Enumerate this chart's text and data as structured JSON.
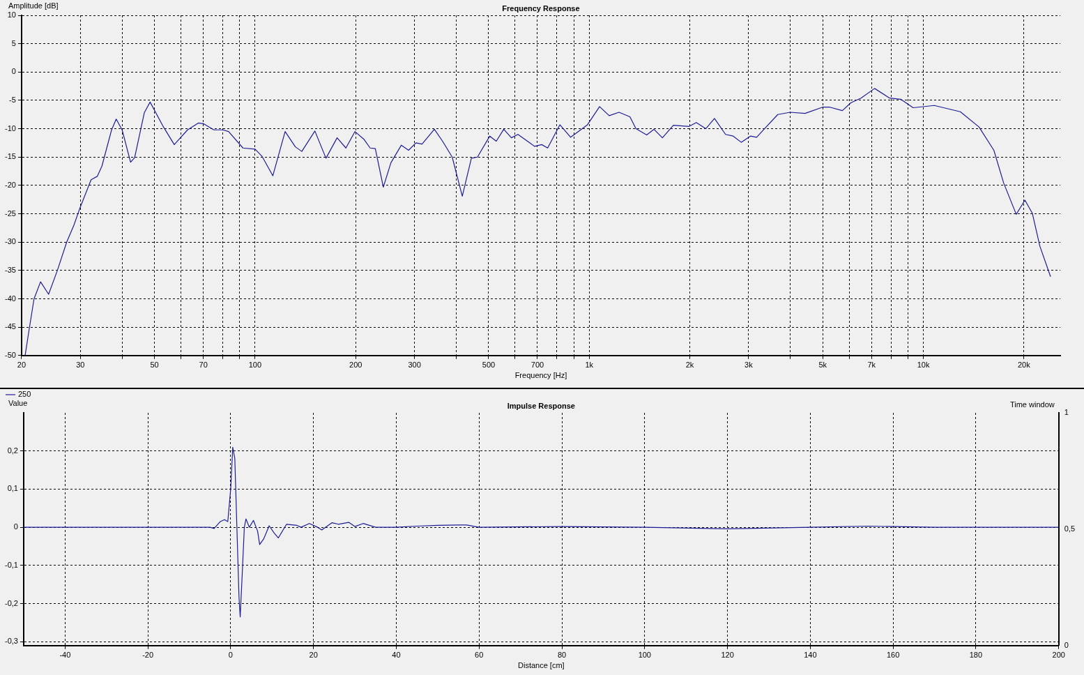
{
  "chart_data": [
    {
      "type": "line",
      "title": "Frequency Response",
      "xlabel": "Frequency [Hz]",
      "ylabel": "Amplitude [dB]",
      "log": "x",
      "grid": true,
      "line_style": "solid",
      "marker": "none",
      "xlim": [
        20,
        25700
      ],
      "ylim": [
        -50,
        10
      ],
      "xticks": [
        20,
        30,
        {
          "value": 40,
          "label": null
        },
        50,
        {
          "value": 60,
          "label": null
        },
        70,
        {
          "value": 80,
          "label": null
        },
        {
          "value": 90,
          "label": null
        },
        100,
        200,
        300,
        {
          "value": 400,
          "label": null
        },
        500,
        {
          "value": 600,
          "label": null
        },
        700,
        {
          "value": 800,
          "label": null
        },
        {
          "value": 900,
          "label": null
        },
        {
          "value": 1000,
          "label": "1k"
        },
        {
          "value": 2000,
          "label": "2k"
        },
        {
          "value": 3000,
          "label": "3k"
        },
        {
          "value": 4000,
          "label": null
        },
        {
          "value": 5000,
          "label": "5k"
        },
        {
          "value": 6000,
          "label": null
        },
        {
          "value": 7000,
          "label": "7k"
        },
        {
          "value": 8000,
          "label": null
        },
        {
          "value": 9000,
          "label": null
        },
        {
          "value": 10000,
          "label": "10k"
        },
        {
          "value": 20000,
          "label": "20k"
        }
      ],
      "yticks": [
        -50,
        -45,
        -40,
        -35,
        -30,
        -25,
        -20,
        -15,
        -10,
        -5,
        0,
        5,
        10
      ],
      "series": [
        {
          "color": "#1c1c96",
          "x": [
            20.5,
            21,
            21.8,
            22.8,
            24.1,
            25.6,
            27.3,
            28.7,
            29.9,
            32.3,
            33.7,
            34.8,
            37.2,
            38.4,
            40,
            42.4,
            43.6,
            46.6,
            48.5,
            53.2,
            57.3,
            62.8,
            67.6,
            70,
            75.3,
            80,
            83.3,
            92,
            100,
            105,
            113,
            123,
            132,
            138,
            151,
            163,
            176,
            187,
            199,
            212,
            221,
            229,
            242,
            255,
            274,
            288,
            303,
            316,
            344,
            364,
            389,
            417,
            444,
            463,
            504,
            527,
            555,
            585,
            612,
            686,
            721,
            751,
            817,
            880,
            988,
            1074,
            1148,
            1228,
            1324,
            1380,
            1486,
            1562,
            1656,
            1786,
            1990,
            2092,
            2233,
            2371,
            2559,
            2697,
            2853,
            3038,
            3170,
            3310,
            3667,
            3995,
            4426,
            4993,
            5254,
            5723,
            6074,
            6507,
            7149,
            7925,
            8557,
            9322,
            10782,
            12906,
            14677,
            16260,
            17400,
            18970,
            20140,
            21190,
            22320,
            24030
          ],
          "values": [
            -50,
            -46,
            -40,
            -37,
            -39.2,
            -35,
            -30,
            -27,
            -24,
            -19,
            -18.4,
            -16.6,
            -10.2,
            -8.3,
            -10.2,
            -15.9,
            -15.1,
            -7.2,
            -5.3,
            -9.7,
            -12.8,
            -10.2,
            -9,
            -9.1,
            -10.2,
            -10.2,
            -10.5,
            -13.4,
            -13.6,
            -14.9,
            -18.3,
            -10.5,
            -13.2,
            -14,
            -10.4,
            -15.2,
            -11.6,
            -13.4,
            -10.5,
            -11.9,
            -13.4,
            -13.5,
            -20.3,
            -16,
            -12.9,
            -13.8,
            -12.5,
            -12.7,
            -10.1,
            -12.2,
            -15,
            -21.9,
            -15.2,
            -15,
            -11.3,
            -12.2,
            -10.1,
            -11.6,
            -11,
            -13.1,
            -12.8,
            -13.4,
            -9.3,
            -11.5,
            -9.3,
            -6.1,
            -7.7,
            -7.1,
            -7.9,
            -10,
            -11.1,
            -10.1,
            -11.6,
            -9.4,
            -9.6,
            -8.9,
            -10,
            -8.2,
            -11,
            -11.3,
            -12.4,
            -11.3,
            -11.5,
            -10.3,
            -7.5,
            -7.1,
            -7.3,
            -6.2,
            -6.2,
            -6.8,
            -5.4,
            -4.6,
            -2.9,
            -4.6,
            -4.8,
            -6.3,
            -5.9,
            -7,
            -9.7,
            -13.8,
            -19.6,
            -25.1,
            -22.6,
            -24.9,
            -30.7,
            -36.1
          ]
        }
      ]
    },
    {
      "type": "line",
      "title": "Impulse Response",
      "xlabel": "Distance [cm]",
      "ylabel": "Value",
      "y2label": "Time window",
      "grid": true,
      "line_style": "solid",
      "marker": "none",
      "legend": "top left",
      "xlim": [
        -50,
        200
      ],
      "ylim": [
        -0.31,
        0.3
      ],
      "y2lim": [
        0,
        1
      ],
      "xticks": [
        -40,
        -20,
        0,
        20,
        40,
        60,
        80,
        100,
        120,
        140,
        160,
        180,
        200
      ],
      "yticks": [
        {
          "value": -0.3,
          "label": "-0,3"
        },
        {
          "value": -0.2,
          "label": "-0,2"
        },
        {
          "value": -0.1,
          "label": "-0,1"
        },
        0,
        {
          "value": 0.1,
          "label": "0,1"
        },
        {
          "value": 0.2,
          "label": "0,2"
        }
      ],
      "y2ticks": [
        0,
        {
          "value": 0.5,
          "label": "0,5"
        },
        1
      ],
      "series": [
        {
          "name": "250",
          "color": "#1c1c96",
          "x": [
            -50,
            -5,
            -4,
            -2.5,
            -1.5,
            -0.7,
            0,
            0.5,
            1,
            1.5,
            2,
            2.3,
            2.8,
            3.3,
            3.7,
            4.5,
            5.5,
            6.5,
            7,
            8,
            9.3,
            10.5,
            11.5,
            13.5,
            16,
            17,
            19,
            21,
            22,
            24.5,
            26,
            28.5,
            30,
            32,
            35,
            40,
            45,
            50,
            55,
            57,
            60,
            80,
            100,
            120,
            140,
            154,
            170,
            200
          ],
          "values": [
            0,
            0,
            -0.003,
            0.015,
            0.02,
            0.015,
            0.1,
            0.21,
            0.18,
            0,
            -0.18,
            -0.235,
            -0.12,
            0,
            0.022,
            0,
            0.018,
            -0.01,
            -0.045,
            -0.03,
            0.004,
            -0.015,
            -0.028,
            0.008,
            0.005,
            0,
            0.01,
            0,
            -0.007,
            0.012,
            0.008,
            0.013,
            0.002,
            0.01,
            0,
            0,
            0.003,
            0.005,
            0.006,
            0.006,
            0,
            0.002,
            0,
            -0.004,
            0,
            0.003,
            0,
            0
          ]
        }
      ]
    }
  ]
}
